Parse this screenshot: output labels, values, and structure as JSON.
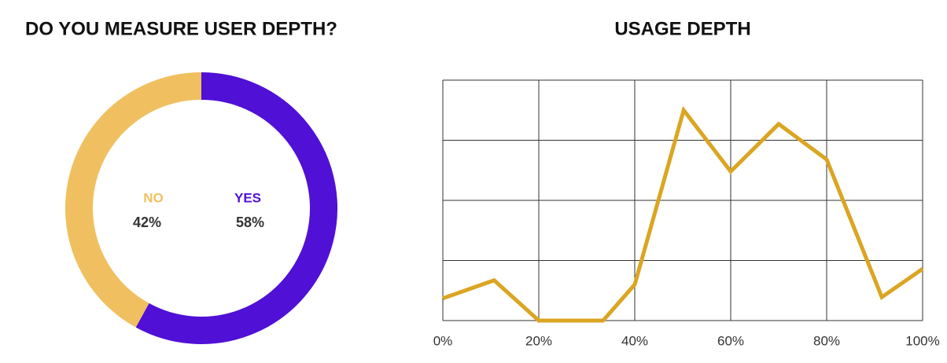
{
  "chart_data": [
    {
      "type": "pie",
      "title": "DO YOU MEASURE USER DEPTH?",
      "categories": [
        "NO",
        "YES"
      ],
      "values": [
        42,
        58
      ],
      "value_labels": [
        "42%",
        "58%"
      ],
      "colors": [
        "#f0c060",
        "#5010d6"
      ]
    },
    {
      "type": "line",
      "title": "USAGE DEPTH",
      "x": [
        0,
        10.7,
        20,
        33.4,
        40,
        50.2,
        60,
        70,
        80,
        91.5,
        100
      ],
      "series": [
        {
          "color": "#dba523",
          "values": [
            0.37,
            0.67,
            0,
            0,
            0.6,
            3.5,
            2.48,
            3.27,
            2.68,
            0.39,
            0.86
          ]
        }
      ],
      "xlim": [
        0,
        100
      ],
      "xticks": [
        {
          "value": 0,
          "label": "0%"
        },
        {
          "value": 20,
          "label": "20%"
        },
        {
          "value": 40,
          "label": "40%"
        },
        {
          "value": 60,
          "label": "60%"
        },
        {
          "value": 80,
          "label": "80%"
        },
        {
          "value": 100,
          "label": "100%"
        }
      ],
      "ylim": [
        0,
        4
      ],
      "yticks": [
        0,
        1,
        2,
        3,
        4
      ],
      "grid": true
    }
  ]
}
